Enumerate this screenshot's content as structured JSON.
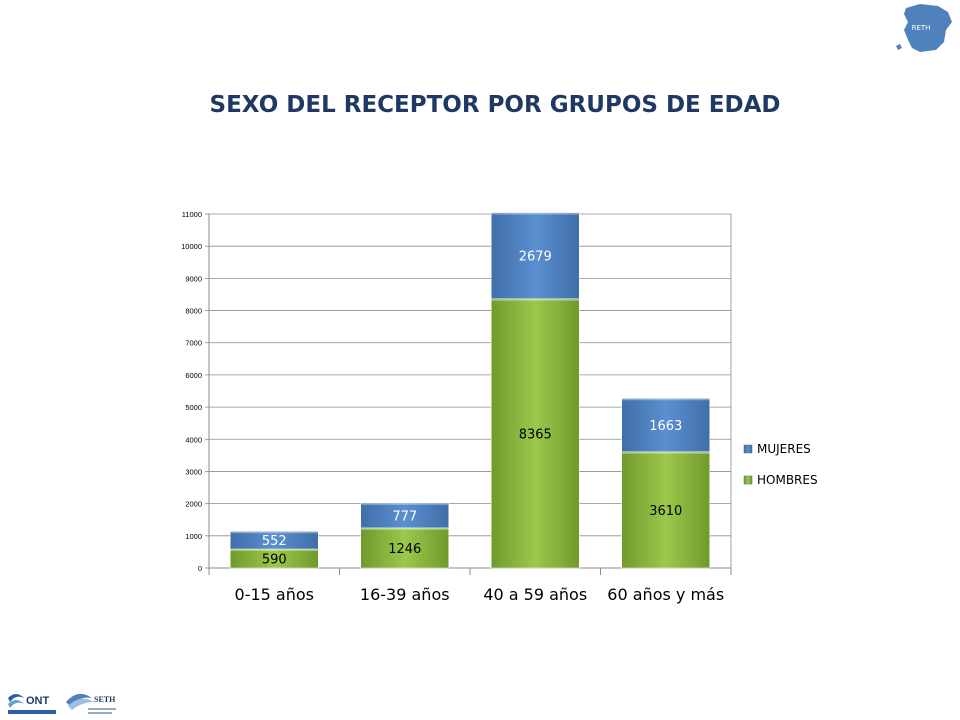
{
  "title": "SEXO DEL RECEPTOR POR GRUPOS DE EDAD",
  "logos": {
    "map_text": "RETH",
    "ont_text": "ONT",
    "seth_text": "SETH"
  },
  "chart_data": {
    "type": "bar",
    "stacked": true,
    "title": "SEXO DEL RECEPTOR POR GRUPOS DE EDAD",
    "categories": [
      "0-15 años",
      "16-39 años",
      "40 a 59 años",
      "60 años y más"
    ],
    "series": [
      {
        "name": "HOMBRES",
        "values": [
          590,
          1246,
          8365,
          3610
        ],
        "color": "#8cb844"
      },
      {
        "name": "MUJERES",
        "values": [
          552,
          777,
          2679,
          1663
        ],
        "color": "#4f81bd"
      }
    ],
    "ylim": [
      0,
      11000
    ],
    "yticks": [
      0,
      1000,
      2000,
      3000,
      4000,
      5000,
      6000,
      7000,
      8000,
      9000,
      10000,
      11000
    ],
    "grid": true,
    "legend": "right",
    "legend_order": [
      "MUJERES",
      "HOMBRES"
    ]
  }
}
